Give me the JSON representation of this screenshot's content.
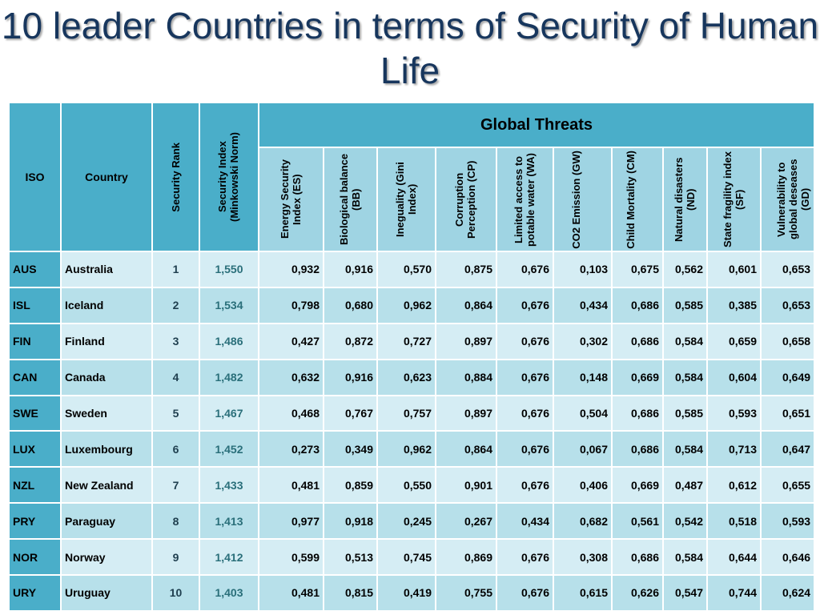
{
  "title": "10 leader Countries in terms of Security of Human Life",
  "headers": {
    "iso": "ISO",
    "country": "Country",
    "rank": "Security Rank",
    "index": "Security Index (Minkowski Norm)",
    "group": "Global Threats",
    "threats": [
      "Energy  Security Index (ES)",
      "Biological balance (BB)",
      "Ineguality (Gini Index)",
      "Corruption Perception (CP)",
      "Limited access to potable water (WA)",
      "CO2 Emission (GW)",
      "Child Mortality (CM)",
      "Natural disasters (ND)",
      "State fragility index (SF)",
      "Vulnerability to global deseases (GD)"
    ]
  },
  "rows": [
    {
      "iso": "AUS",
      "country": "Australia",
      "rank": "1",
      "index": "1,550",
      "v": [
        "0,932",
        "0,916",
        "0,570",
        "0,875",
        "0,676",
        "0,103",
        "0,675",
        "0,562",
        "0,601",
        "0,653"
      ]
    },
    {
      "iso": "ISL",
      "country": "Iceland",
      "rank": "2",
      "index": "1,534",
      "v": [
        "0,798",
        "0,680",
        "0,962",
        "0,864",
        "0,676",
        "0,434",
        "0,686",
        "0,585",
        "0,385",
        "0,653"
      ]
    },
    {
      "iso": "FIN",
      "country": "Finland",
      "rank": "3",
      "index": "1,486",
      "v": [
        "0,427",
        "0,872",
        "0,727",
        "0,897",
        "0,676",
        "0,302",
        "0,686",
        "0,584",
        "0,659",
        "0,658"
      ]
    },
    {
      "iso": "CAN",
      "country": "Canada",
      "rank": "4",
      "index": "1,482",
      "v": [
        "0,632",
        "0,916",
        "0,623",
        "0,884",
        "0,676",
        "0,148",
        "0,669",
        "0,584",
        "0,604",
        "0,649"
      ]
    },
    {
      "iso": "SWE",
      "country": "Sweden",
      "rank": "5",
      "index": "1,467",
      "v": [
        "0,468",
        "0,767",
        "0,757",
        "0,897",
        "0,676",
        "0,504",
        "0,686",
        "0,585",
        "0,593",
        "0,651"
      ]
    },
    {
      "iso": "LUX",
      "country": "Luxembourg",
      "rank": "6",
      "index": "1,452",
      "v": [
        "0,273",
        "0,349",
        "0,962",
        "0,864",
        "0,676",
        "0,067",
        "0,686",
        "0,584",
        "0,713",
        "0,647"
      ]
    },
    {
      "iso": "NZL",
      "country": "New Zealand",
      "rank": "7",
      "index": "1,433",
      "v": [
        "0,481",
        "0,859",
        "0,550",
        "0,901",
        "0,676",
        "0,406",
        "0,669",
        "0,487",
        "0,612",
        "0,655"
      ]
    },
    {
      "iso": "PRY",
      "country": "Paraguay",
      "rank": "8",
      "index": "1,413",
      "v": [
        "0,977",
        "0,918",
        "0,245",
        "0,267",
        "0,434",
        "0,682",
        "0,561",
        "0,542",
        "0,518",
        "0,593"
      ]
    },
    {
      "iso": "NOR",
      "country": "Norway",
      "rank": "9",
      "index": "1,412",
      "v": [
        "0,599",
        "0,513",
        "0,745",
        "0,869",
        "0,676",
        "0,308",
        "0,686",
        "0,584",
        "0,644",
        "0,646"
      ]
    },
    {
      "iso": "URY",
      "country": "Uruguay",
      "rank": "10",
      "index": "1,403",
      "v": [
        "0,481",
        "0,815",
        "0,419",
        "0,755",
        "0,676",
        "0,615",
        "0,626",
        "0,547",
        "0,744",
        "0,624"
      ]
    }
  ]
}
